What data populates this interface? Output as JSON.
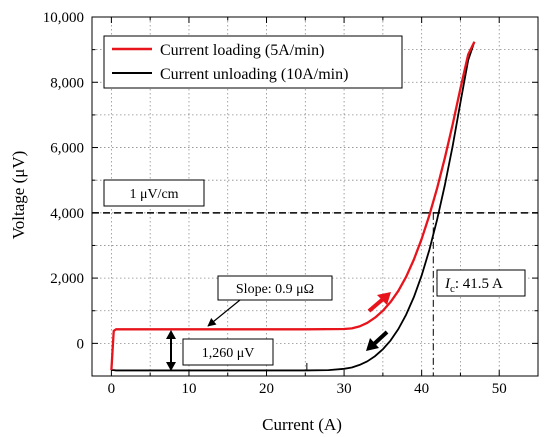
{
  "chart_data": {
    "type": "line",
    "xlabel": "Current (A)",
    "ylabel": "Voltage (μV)",
    "xlim": [
      -2.5,
      55
    ],
    "ylim": [
      -1000,
      10000
    ],
    "xticks": [
      0,
      10,
      20,
      30,
      40,
      50
    ],
    "xtick_labels": [
      "0",
      "10",
      "20",
      "30",
      "40",
      "50"
    ],
    "yticks": [
      0,
      2000,
      4000,
      6000,
      8000,
      10000
    ],
    "ytick_labels": [
      "0",
      "2,000",
      "4,000",
      "6,000",
      "8,000",
      "10,000"
    ],
    "grid": true,
    "legend_position": "top-left",
    "series": [
      {
        "name": "Current loading (5A/min)",
        "color": "#e8141c",
        "x": [
          0,
          0.3,
          0.6,
          1,
          5,
          10,
          15,
          20,
          25,
          30,
          31,
          32,
          33,
          34,
          35,
          36,
          37,
          38,
          39,
          40,
          41,
          42,
          43,
          44,
          45,
          46,
          46.8
        ],
        "y": [
          -820,
          380,
          430,
          430,
          430,
          430,
          430,
          430,
          430,
          440,
          460,
          520,
          630,
          790,
          1000,
          1270,
          1610,
          2040,
          2570,
          3200,
          3930,
          4760,
          5690,
          6710,
          7810,
          8850,
          9240
        ]
      },
      {
        "name": "Current unloading (10A/min)",
        "color": "#000000",
        "x": [
          0,
          0.3,
          0.6,
          1,
          5,
          10,
          15,
          20,
          25,
          28,
          30,
          31,
          32,
          33,
          34,
          35,
          36,
          37,
          38,
          39,
          40,
          41,
          42,
          43,
          44,
          45,
          46,
          46.8
        ],
        "y": [
          -820,
          -820,
          -830,
          -830,
          -830,
          -830,
          -830,
          -830,
          -830,
          -820,
          -780,
          -740,
          -660,
          -550,
          -390,
          -180,
          90,
          440,
          880,
          1420,
          2080,
          2870,
          3800,
          4860,
          6050,
          7380,
          8680,
          9240
        ]
      }
    ],
    "annotations": {
      "criterion_label": "1 μV/cm",
      "criterion_y": 4000,
      "slope_label": "Slope: 0.9 μΩ",
      "offset_label": "1,260 μV",
      "ic_label_prefix": "I",
      "ic_label_sub": "c",
      "ic_label_suffix": ": 41.5 A",
      "ic_x": 41.5
    }
  }
}
